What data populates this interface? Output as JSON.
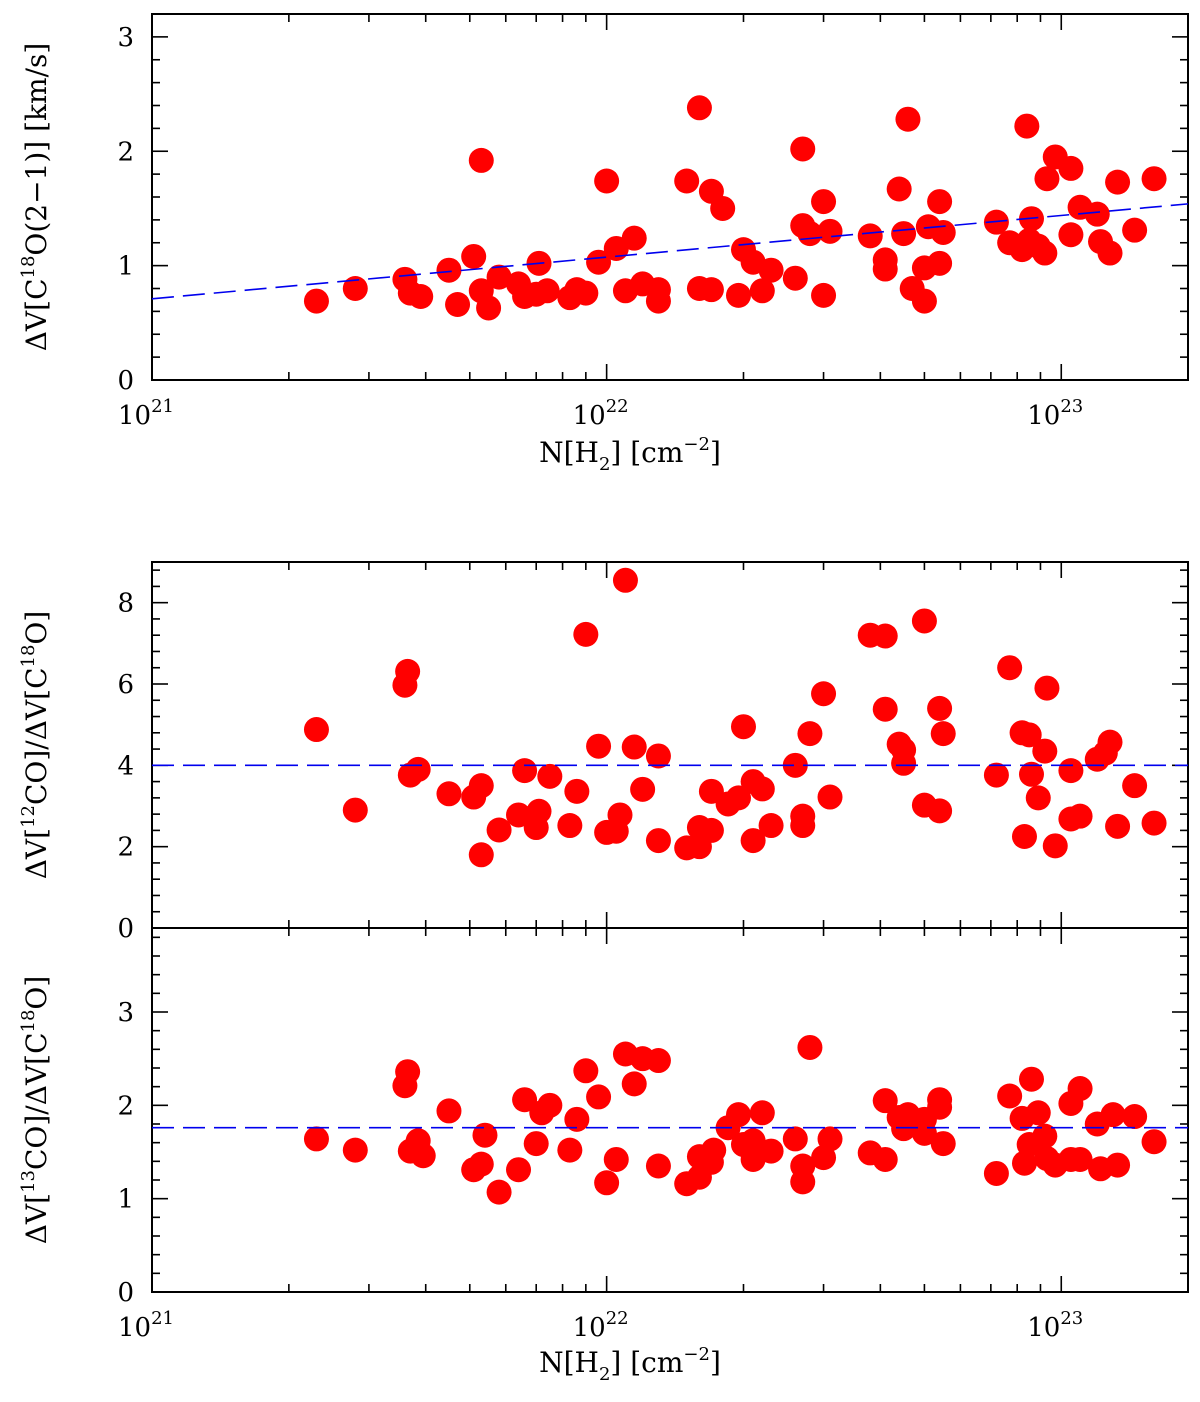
{
  "colors": {
    "points": "#ff0000",
    "fit": "#0000ee",
    "axes": "#000000"
  },
  "chart_data": [
    {
      "id": "top",
      "type": "scatter",
      "xscale": "log",
      "xlim": [
        1e+21,
        1.9e+23
      ],
      "ylim": [
        0,
        3.2
      ],
      "xlabel": {
        "main": "N[H",
        "sub": "2",
        "mid": "] [cm",
        "sup": "−2",
        "end": "]"
      },
      "ylabel": {
        "main": "ΔV[C",
        "sup": "18",
        "end": "O(2−1)] [km/s]"
      },
      "yticks": [
        0,
        1,
        2,
        3
      ],
      "xticks": [
        {
          "mant": "10",
          "exp": "21"
        },
        {
          "mant": "10",
          "exp": "22"
        },
        {
          "mant": "10",
          "exp": "23"
        }
      ],
      "fit_line": {
        "style": "dashed",
        "x": [
          1e+21,
          1.9e+23
        ],
        "y": [
          0.71,
          1.54
        ]
      },
      "points": [
        [
          2.3e+21,
          0.69
        ],
        [
          2.8e+21,
          0.8
        ],
        [
          3.6e+21,
          0.88
        ],
        [
          3.7e+21,
          0.76
        ],
        [
          3.9e+21,
          0.73
        ],
        [
          4.5e+21,
          0.96
        ],
        [
          4.7e+21,
          0.66
        ],
        [
          5.1e+21,
          1.08
        ],
        [
          5.3e+21,
          0.78
        ],
        [
          5.5e+21,
          0.63
        ],
        [
          5.3e+21,
          1.92
        ],
        [
          5.8e+21,
          0.9
        ],
        [
          6.4e+21,
          0.84
        ],
        [
          6.6e+21,
          0.73
        ],
        [
          7e+21,
          0.75
        ],
        [
          7.1e+21,
          1.02
        ],
        [
          7.4e+21,
          0.78
        ],
        [
          8.3e+21,
          0.72
        ],
        [
          8.6e+21,
          0.79
        ],
        [
          9e+21,
          0.76
        ],
        [
          9.6e+21,
          1.03
        ],
        [
          1e+22,
          1.74
        ],
        [
          1.05e+22,
          1.15
        ],
        [
          1.1e+22,
          0.78
        ],
        [
          1.15e+22,
          1.24
        ],
        [
          1.2e+22,
          0.84
        ],
        [
          1.3e+22,
          0.69
        ],
        [
          1.3e+22,
          0.79
        ],
        [
          1.5e+22,
          1.74
        ],
        [
          1.6e+22,
          2.38
        ],
        [
          1.6e+22,
          0.8
        ],
        [
          1.7e+22,
          1.65
        ],
        [
          1.7e+22,
          0.79
        ],
        [
          1.8e+22,
          1.5
        ],
        [
          1.95e+22,
          0.74
        ],
        [
          2e+22,
          1.14
        ],
        [
          2.1e+22,
          1.03
        ],
        [
          2.2e+22,
          0.78
        ],
        [
          2.3e+22,
          0.96
        ],
        [
          2.6e+22,
          0.89
        ],
        [
          2.7e+22,
          2.02
        ],
        [
          2.7e+22,
          1.35
        ],
        [
          2.8e+22,
          1.28
        ],
        [
          3e+22,
          0.74
        ],
        [
          3e+22,
          1.56
        ],
        [
          3.1e+22,
          1.3
        ],
        [
          3.8e+22,
          1.26
        ],
        [
          4.1e+22,
          0.97
        ],
        [
          4.1e+22,
          1.05
        ],
        [
          4.4e+22,
          1.67
        ],
        [
          4.5e+22,
          1.28
        ],
        [
          4.6e+22,
          2.28
        ],
        [
          4.7e+22,
          0.8
        ],
        [
          5e+22,
          0.69
        ],
        [
          5e+22,
          0.98
        ],
        [
          5.1e+22,
          1.34
        ],
        [
          5.4e+22,
          1.56
        ],
        [
          5.4e+22,
          1.02
        ],
        [
          5.5e+22,
          1.29
        ],
        [
          7.2e+22,
          1.38
        ],
        [
          7.7e+22,
          1.2
        ],
        [
          8.2e+22,
          1.14
        ],
        [
          8.4e+22,
          2.22
        ],
        [
          8.5e+22,
          1.22
        ],
        [
          8.6e+22,
          1.41
        ],
        [
          8.9e+22,
          1.17
        ],
        [
          9.2e+22,
          1.11
        ],
        [
          9.3e+22,
          1.76
        ],
        [
          9.7e+22,
          1.95
        ],
        [
          1.05e+23,
          1.85
        ],
        [
          1.05e+23,
          1.27
        ],
        [
          1.1e+23,
          1.51
        ],
        [
          1.2e+23,
          1.45
        ],
        [
          1.22e+23,
          1.21
        ],
        [
          1.28e+23,
          1.11
        ],
        [
          1.33e+23,
          1.73
        ],
        [
          1.45e+23,
          1.31
        ],
        [
          1.6e+23,
          1.76
        ]
      ]
    },
    {
      "id": "middle",
      "type": "scatter",
      "xscale": "log",
      "xlim": [
        1e+21,
        1.9e+23
      ],
      "ylim": [
        0,
        9
      ],
      "ylabel": {
        "main": "ΔV[",
        "sup": "12",
        "end": "CO]/ΔV[C",
        "sup2": "18",
        "end2": "O]"
      },
      "yticks": [
        0,
        2,
        4,
        6,
        8
      ],
      "fit_line": {
        "style": "dashed",
        "x": [
          1e+21,
          1.9e+23
        ],
        "y": [
          4.0,
          4.0
        ]
      },
      "points": [
        [
          2.3e+21,
          4.88
        ],
        [
          2.8e+21,
          2.9
        ],
        [
          3.6e+21,
          5.97
        ],
        [
          3.65e+21,
          6.31
        ],
        [
          3.7e+21,
          3.76
        ],
        [
          3.85e+21,
          3.9
        ],
        [
          4.5e+21,
          3.3
        ],
        [
          5.1e+21,
          3.22
        ],
        [
          5.3e+21,
          3.5
        ],
        [
          5.3e+21,
          1.8
        ],
        [
          5.8e+21,
          2.41
        ],
        [
          6.4e+21,
          2.78
        ],
        [
          6.6e+21,
          3.87
        ],
        [
          7e+21,
          2.47
        ],
        [
          7.1e+21,
          2.87
        ],
        [
          7.5e+21,
          3.73
        ],
        [
          8.3e+21,
          2.52
        ],
        [
          8.6e+21,
          3.36
        ],
        [
          9e+21,
          7.22
        ],
        [
          9.6e+21,
          4.47
        ],
        [
          1e+22,
          2.35
        ],
        [
          1.05e+22,
          2.38
        ],
        [
          1.07e+22,
          2.78
        ],
        [
          1.1e+22,
          8.55
        ],
        [
          1.15e+22,
          4.45
        ],
        [
          1.2e+22,
          3.41
        ],
        [
          1.3e+22,
          4.23
        ],
        [
          1.3e+22,
          2.15
        ],
        [
          1.5e+22,
          1.97
        ],
        [
          1.6e+22,
          2.0
        ],
        [
          1.6e+22,
          2.47
        ],
        [
          1.7e+22,
          3.36
        ],
        [
          1.7e+22,
          2.4
        ],
        [
          1.85e+22,
          3.05
        ],
        [
          1.95e+22,
          3.2
        ],
        [
          2e+22,
          4.95
        ],
        [
          2.1e+22,
          2.15
        ],
        [
          2.1e+22,
          3.6
        ],
        [
          2.2e+22,
          3.42
        ],
        [
          2.3e+22,
          2.52
        ],
        [
          2.6e+22,
          4.0
        ],
        [
          2.7e+22,
          2.75
        ],
        [
          2.7e+22,
          2.52
        ],
        [
          2.8e+22,
          4.78
        ],
        [
          3e+22,
          5.76
        ],
        [
          3.1e+22,
          3.22
        ],
        [
          3.8e+22,
          7.2
        ],
        [
          4.1e+22,
          7.18
        ],
        [
          4.1e+22,
          5.38
        ],
        [
          4.4e+22,
          4.52
        ],
        [
          4.5e+22,
          4.38
        ],
        [
          4.5e+22,
          4.05
        ],
        [
          5e+22,
          7.55
        ],
        [
          5e+22,
          3.02
        ],
        [
          5.4e+22,
          2.88
        ],
        [
          5.4e+22,
          5.4
        ],
        [
          5.5e+22,
          4.78
        ],
        [
          7.2e+22,
          3.76
        ],
        [
          7.7e+22,
          6.4
        ],
        [
          8.2e+22,
          4.8
        ],
        [
          8.3e+22,
          2.25
        ],
        [
          8.5e+22,
          4.75
        ],
        [
          8.6e+22,
          3.78
        ],
        [
          8.9e+22,
          3.2
        ],
        [
          9.2e+22,
          4.35
        ],
        [
          9.3e+22,
          5.9
        ],
        [
          9.7e+22,
          2.02
        ],
        [
          1.05e+23,
          3.87
        ],
        [
          1.05e+23,
          2.68
        ],
        [
          1.1e+23,
          2.75
        ],
        [
          1.2e+23,
          4.15
        ],
        [
          1.25e+23,
          4.3
        ],
        [
          1.28e+23,
          4.57
        ],
        [
          1.33e+23,
          2.5
        ],
        [
          1.45e+23,
          3.5
        ],
        [
          1.6e+23,
          2.58
        ]
      ]
    },
    {
      "id": "bottom",
      "type": "scatter",
      "xscale": "log",
      "xlim": [
        1e+21,
        1.9e+23
      ],
      "ylim": [
        0,
        3.9
      ],
      "xlabel": {
        "main": "N[H",
        "sub": "2",
        "mid": "] [cm",
        "sup": "−2",
        "end": "]"
      },
      "ylabel": {
        "main": "ΔV[",
        "sup": "13",
        "end": "CO]/ΔV[C",
        "sup2": "18",
        "end2": "O]"
      },
      "yticks": [
        0,
        1,
        2,
        3
      ],
      "xticks": [
        {
          "mant": "10",
          "exp": "21"
        },
        {
          "mant": "10",
          "exp": "22"
        },
        {
          "mant": "10",
          "exp": "23"
        }
      ],
      "fit_line": {
        "style": "dashed",
        "x": [
          1e+21,
          1.9e+23
        ],
        "y": [
          1.76,
          1.76
        ]
      },
      "points": [
        [
          2.3e+21,
          1.64
        ],
        [
          2.8e+21,
          1.52
        ],
        [
          3.6e+21,
          2.21
        ],
        [
          3.65e+21,
          2.36
        ],
        [
          3.7e+21,
          1.51
        ],
        [
          3.85e+21,
          1.62
        ],
        [
          3.95e+21,
          1.46
        ],
        [
          4.5e+21,
          1.94
        ],
        [
          5.1e+21,
          1.31
        ],
        [
          5.3e+21,
          1.37
        ],
        [
          5.4e+21,
          1.68
        ],
        [
          5.8e+21,
          1.07
        ],
        [
          6.4e+21,
          1.31
        ],
        [
          6.6e+21,
          2.06
        ],
        [
          7e+21,
          1.59
        ],
        [
          7.2e+21,
          1.92
        ],
        [
          7.5e+21,
          2.0
        ],
        [
          8.3e+21,
          1.52
        ],
        [
          8.6e+21,
          1.85
        ],
        [
          9e+21,
          2.37
        ],
        [
          9.6e+21,
          2.09
        ],
        [
          1e+22,
          1.17
        ],
        [
          1.05e+22,
          1.42
        ],
        [
          1.1e+22,
          2.55
        ],
        [
          1.15e+22,
          2.23
        ],
        [
          1.2e+22,
          2.5
        ],
        [
          1.3e+22,
          1.35
        ],
        [
          1.3e+22,
          2.48
        ],
        [
          1.5e+22,
          1.16
        ],
        [
          1.6e+22,
          1.23
        ],
        [
          1.6e+22,
          1.45
        ],
        [
          1.7e+22,
          1.39
        ],
        [
          1.72e+22,
          1.52
        ],
        [
          1.85e+22,
          1.76
        ],
        [
          1.95e+22,
          1.9
        ],
        [
          2e+22,
          1.58
        ],
        [
          2.1e+22,
          1.42
        ],
        [
          2.1e+22,
          1.62
        ],
        [
          2.2e+22,
          1.92
        ],
        [
          2.3e+22,
          1.51
        ],
        [
          2.6e+22,
          1.64
        ],
        [
          2.7e+22,
          1.35
        ],
        [
          2.7e+22,
          1.18
        ],
        [
          2.8e+22,
          2.62
        ],
        [
          3e+22,
          1.44
        ],
        [
          3.1e+22,
          1.64
        ],
        [
          3.8e+22,
          1.49
        ],
        [
          4.1e+22,
          2.05
        ],
        [
          4.1e+22,
          1.42
        ],
        [
          4.4e+22,
          1.87
        ],
        [
          4.5e+22,
          1.75
        ],
        [
          4.6e+22,
          1.9
        ],
        [
          5e+22,
          1.85
        ],
        [
          5e+22,
          1.7
        ],
        [
          5.4e+22,
          2.06
        ],
        [
          5.4e+22,
          1.98
        ],
        [
          5.5e+22,
          1.59
        ],
        [
          7.2e+22,
          1.27
        ],
        [
          7.7e+22,
          2.1
        ],
        [
          8.2e+22,
          1.86
        ],
        [
          8.3e+22,
          1.38
        ],
        [
          8.5e+22,
          1.58
        ],
        [
          8.6e+22,
          2.28
        ],
        [
          8.9e+22,
          1.92
        ],
        [
          9.2e+22,
          1.67
        ],
        [
          9.3e+22,
          1.43
        ],
        [
          9.7e+22,
          1.36
        ],
        [
          1.05e+23,
          2.02
        ],
        [
          1.05e+23,
          1.42
        ],
        [
          1.1e+23,
          2.18
        ],
        [
          1.1e+23,
          1.42
        ],
        [
          1.2e+23,
          1.8
        ],
        [
          1.22e+23,
          1.32
        ],
        [
          1.3e+23,
          1.9
        ],
        [
          1.33e+23,
          1.36
        ],
        [
          1.45e+23,
          1.88
        ],
        [
          1.6e+23,
          1.61
        ]
      ]
    }
  ]
}
